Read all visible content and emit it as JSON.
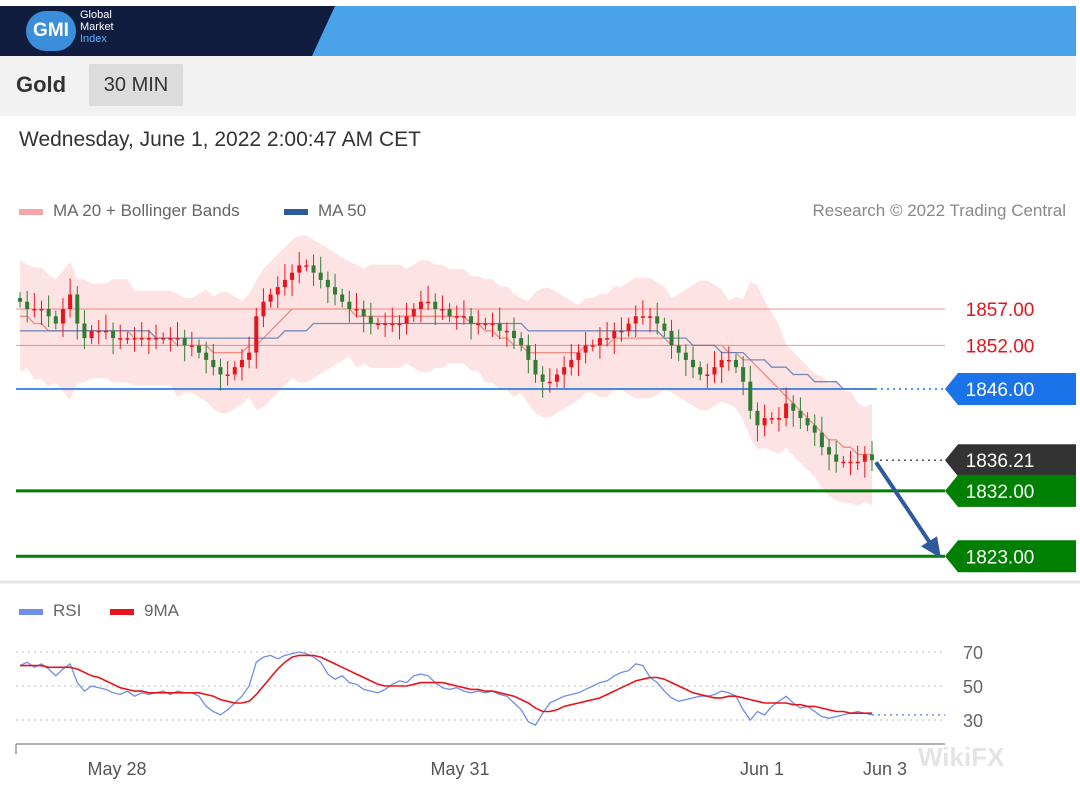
{
  "brand": {
    "logo_text": "GMI",
    "line1": "Global",
    "line2": "Market",
    "line3": "Index"
  },
  "symbol": "Gold",
  "timeframe": "30 MIN",
  "datetime": "Wednesday, June 1, 2022 2:00:47 AM CET",
  "copyright": "Research © 2022 Trading Central",
  "watermark": "WikiFX",
  "colors": {
    "resistance": "#e8141b",
    "pivot": "#1a73e8",
    "support": "#008000",
    "current": "#333333",
    "bull_candle": "#e8141b",
    "bear_candle": "#2e7d32",
    "ma20": "#f28b82",
    "ma50": "#5b7bb5",
    "rsi": "#6f8ee8",
    "rsi_ma": "#e8141b",
    "arrow": "#2f5b9e"
  },
  "chart_data": {
    "type": "candlestick",
    "legend": [
      {
        "name": "MA 20 + Bollinger Bands",
        "color": "#f28b82"
      },
      {
        "name": "MA 50",
        "color": "#2f5b9e"
      }
    ],
    "x_ticks": [
      "May 28",
      "May 31",
      "Jun 1",
      "Jun 3"
    ],
    "y_range": [
      1818,
      1870
    ],
    "levels": [
      {
        "label": "1857.00",
        "value": 1857.0,
        "kind": "resistance"
      },
      {
        "label": "1852.00",
        "value": 1852.0,
        "kind": "resistance"
      },
      {
        "label": "1846.00",
        "value": 1846.0,
        "kind": "pivot"
      },
      {
        "label": "1836.21",
        "value": 1836.21,
        "kind": "current"
      },
      {
        "label": "1832.00",
        "value": 1832.0,
        "kind": "support"
      },
      {
        "label": "1823.00",
        "value": 1823.0,
        "kind": "support"
      }
    ],
    "close": [
      1858,
      1857,
      1857,
      1857,
      1856,
      1855,
      1857,
      1859,
      1855,
      1853,
      1854,
      1854,
      1854,
      1853,
      1853,
      1853,
      1853,
      1853,
      1853,
      1853,
      1853,
      1853,
      1853,
      1852,
      1852,
      1851,
      1850,
      1849,
      1848,
      1848,
      1849,
      1850,
      1851,
      1856,
      1858,
      1859,
      1860,
      1861,
      1862,
      1863,
      1863,
      1862,
      1861,
      1860,
      1859,
      1858,
      1857,
      1857,
      1856,
      1855,
      1855,
      1855,
      1855,
      1855,
      1856,
      1857,
      1858,
      1858,
      1857,
      1857,
      1856,
      1856,
      1856,
      1855,
      1855,
      1855,
      1855,
      1854,
      1854,
      1853,
      1852,
      1850,
      1848,
      1847,
      1847,
      1848,
      1849,
      1850,
      1851,
      1852,
      1852,
      1853,
      1853,
      1854,
      1854,
      1855,
      1856,
      1856,
      1856,
      1855,
      1854,
      1852,
      1851,
      1850,
      1849,
      1848,
      1848,
      1849,
      1850,
      1850,
      1849,
      1847,
      1843,
      1841,
      1842,
      1842,
      1842,
      1844,
      1843,
      1842,
      1841,
      1840,
      1838,
      1837,
      1836,
      1836,
      1836,
      1836,
      1837,
      1836.21
    ],
    "ma20": [
      1856,
      1856,
      1855,
      1855,
      1854,
      1854,
      1854,
      1854,
      1854,
      1854,
      1854,
      1854,
      1854,
      1854,
      1854,
      1854,
      1853,
      1853,
      1853,
      1853,
      1853,
      1853,
      1852,
      1852,
      1852,
      1852,
      1852,
      1851,
      1851,
      1851,
      1851,
      1851,
      1852,
      1852,
      1853,
      1854,
      1855,
      1856,
      1857,
      1857,
      1857,
      1857,
      1857,
      1857,
      1857,
      1857,
      1857,
      1856,
      1856,
      1856,
      1856,
      1856,
      1856,
      1856,
      1856,
      1856,
      1856,
      1856,
      1856,
      1856,
      1856,
      1856,
      1856,
      1855,
      1855,
      1854,
      1854,
      1853,
      1853,
      1852,
      1852,
      1851,
      1851,
      1851,
      1851,
      1851,
      1851,
      1851,
      1851,
      1852,
      1852,
      1852,
      1852,
      1853,
      1853,
      1853,
      1853,
      1853,
      1853,
      1853,
      1853,
      1852,
      1852,
      1852,
      1852,
      1852,
      1852,
      1852,
      1852,
      1851,
      1851,
      1850,
      1850,
      1849,
      1848,
      1847,
      1846,
      1845,
      1844,
      1843,
      1842,
      1841,
      1840,
      1839,
      1839,
      1838,
      1838,
      1837,
      1837,
      1837
    ],
    "ma50": [
      1854,
      1854,
      1854,
      1854,
      1854,
      1854,
      1854,
      1854,
      1854,
      1854,
      1854,
      1854,
      1854,
      1854,
      1854,
      1854,
      1854,
      1854,
      1854,
      1853,
      1853,
      1853,
      1853,
      1853,
      1853,
      1853,
      1853,
      1853,
      1853,
      1853,
      1853,
      1853,
      1853,
      1853,
      1853,
      1853,
      1853,
      1854,
      1854,
      1854,
      1854,
      1855,
      1855,
      1855,
      1855,
      1855,
      1855,
      1855,
      1855,
      1855,
      1855,
      1855,
      1855,
      1855,
      1855,
      1855,
      1855,
      1855,
      1855,
      1855,
      1855,
      1855,
      1855,
      1855,
      1855,
      1855,
      1855,
      1855,
      1855,
      1855,
      1855,
      1854,
      1854,
      1854,
      1854,
      1854,
      1854,
      1854,
      1854,
      1854,
      1854,
      1854,
      1854,
      1854,
      1854,
      1854,
      1854,
      1854,
      1854,
      1854,
      1853,
      1853,
      1853,
      1853,
      1852,
      1852,
      1852,
      1852,
      1851,
      1851,
      1851,
      1851,
      1850,
      1850,
      1850,
      1849,
      1849,
      1849,
      1848,
      1848,
      1848,
      1847,
      1847,
      1847,
      1847,
      1846,
      1846,
      1846,
      1846,
      1846
    ],
    "rsi_panel": {
      "legend": [
        {
          "name": "RSI",
          "color": "#6f8ee8"
        },
        {
          "name": "9MA",
          "color": "#e8141b"
        }
      ],
      "y_ticks": [
        "70",
        "50",
        "30"
      ],
      "y_range": [
        20,
        80
      ],
      "rsi": [
        62,
        64,
        61,
        63,
        60,
        56,
        60,
        63,
        52,
        47,
        50,
        49,
        48,
        46,
        45,
        47,
        44,
        46,
        45,
        46,
        47,
        45,
        47,
        46,
        46,
        44,
        38,
        35,
        33,
        36,
        40,
        44,
        50,
        64,
        67,
        68,
        66,
        68,
        69,
        70,
        69,
        67,
        64,
        57,
        54,
        56,
        52,
        51,
        48,
        47,
        46,
        48,
        51,
        53,
        52,
        56,
        57,
        56,
        52,
        49,
        48,
        49,
        47,
        46,
        47,
        46,
        47,
        45,
        44,
        40,
        36,
        29,
        27,
        34,
        40,
        42,
        44,
        45,
        46,
        48,
        50,
        52,
        53,
        56,
        58,
        59,
        63,
        62,
        55,
        52,
        47,
        43,
        41,
        42,
        43,
        44,
        44,
        45,
        47,
        46,
        44,
        36,
        30,
        35,
        33,
        38,
        41,
        44,
        40,
        37,
        38,
        35,
        32,
        31,
        32,
        33,
        34,
        35,
        34,
        33
      ],
      "ma9": [
        62,
        62,
        62,
        62,
        61,
        61,
        61,
        61,
        60,
        58,
        56,
        55,
        53,
        51,
        49,
        48,
        47,
        47,
        46,
        46,
        46,
        46,
        46,
        46,
        46,
        46,
        45,
        44,
        42,
        41,
        40,
        40,
        41,
        45,
        50,
        55,
        60,
        64,
        67,
        68,
        68,
        68,
        67,
        65,
        63,
        61,
        59,
        57,
        55,
        53,
        51,
        50,
        50,
        50,
        50,
        51,
        52,
        52,
        52,
        52,
        51,
        50,
        49,
        48,
        48,
        47,
        47,
        46,
        45,
        44,
        42,
        40,
        37,
        35,
        35,
        36,
        38,
        39,
        40,
        41,
        42,
        43,
        45,
        47,
        49,
        51,
        53,
        54,
        55,
        55,
        54,
        52,
        50,
        48,
        46,
        45,
        44,
        43,
        43,
        44,
        44,
        43,
        42,
        41,
        40,
        40,
        40,
        40,
        39,
        39,
        38,
        38,
        37,
        36,
        35,
        35,
        34,
        34,
        34,
        34
      ]
    }
  }
}
